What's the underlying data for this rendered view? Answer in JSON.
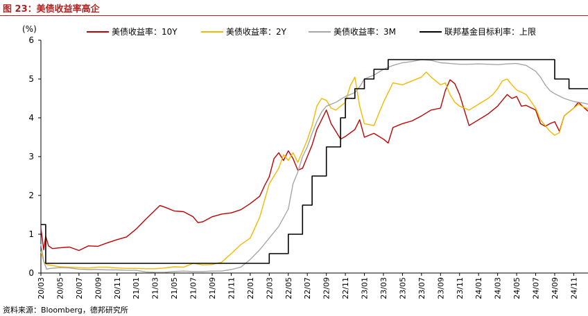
{
  "figure_title": "图 23：美债收益率高企",
  "source_note": "资料来源：Bloomberg，德邦研究所",
  "chart_data": {
    "type": "line",
    "title": "",
    "ylabel": "(%)",
    "xlabel": "",
    "ylim": [
      0,
      6
    ],
    "yticks": [
      "0",
      "1",
      "2",
      "3",
      "4",
      "5",
      "6"
    ],
    "xticks": [
      "20/03",
      "20/05",
      "20/07",
      "20/09",
      "20/11",
      "21/01",
      "21/03",
      "21/05",
      "21/07",
      "21/09",
      "21/11",
      "22/01",
      "22/03",
      "22/05",
      "22/07",
      "22/09",
      "22/11",
      "23/01",
      "23/03",
      "23/05",
      "23/07",
      "23/09",
      "23/11",
      "24/01",
      "24/03",
      "24/05",
      "24/07",
      "24/09",
      "24/11"
    ],
    "x_unit": "month index from 20/03",
    "xlim": [
      0,
      57.5
    ],
    "grid": false,
    "legend_position": "top",
    "series": [
      {
        "name": "美债收益率：10Y",
        "color": "#c00000",
        "style": "solid",
        "points": [
          [
            0,
            1.15
          ],
          [
            0.3,
            0.6
          ],
          [
            0.5,
            0.95
          ],
          [
            0.8,
            0.7
          ],
          [
            1.2,
            0.63
          ],
          [
            2,
            0.65
          ],
          [
            3,
            0.67
          ],
          [
            4,
            0.58
          ],
          [
            5,
            0.7
          ],
          [
            6,
            0.69
          ],
          [
            7,
            0.78
          ],
          [
            8,
            0.86
          ],
          [
            9,
            0.93
          ],
          [
            10,
            1.13
          ],
          [
            11,
            1.38
          ],
          [
            12,
            1.62
          ],
          [
            12.5,
            1.74
          ],
          [
            13,
            1.7
          ],
          [
            14,
            1.6
          ],
          [
            15,
            1.58
          ],
          [
            16,
            1.45
          ],
          [
            16.5,
            1.3
          ],
          [
            17,
            1.32
          ],
          [
            18,
            1.45
          ],
          [
            19,
            1.52
          ],
          [
            20,
            1.55
          ],
          [
            21,
            1.63
          ],
          [
            22,
            1.79
          ],
          [
            23,
            1.98
          ],
          [
            23.5,
            2.25
          ],
          [
            24,
            2.48
          ],
          [
            24.5,
            2.95
          ],
          [
            25,
            3.1
          ],
          [
            25.5,
            2.9
          ],
          [
            26,
            3.15
          ],
          [
            26.5,
            2.95
          ],
          [
            27,
            2.65
          ],
          [
            27.5,
            2.7
          ],
          [
            28,
            3.0
          ],
          [
            28.5,
            3.3
          ],
          [
            29,
            3.7
          ],
          [
            29.5,
            3.95
          ],
          [
            30,
            4.2
          ],
          [
            30.5,
            3.85
          ],
          [
            31,
            3.65
          ],
          [
            31.5,
            3.45
          ],
          [
            32,
            3.52
          ],
          [
            33,
            3.7
          ],
          [
            33.5,
            3.95
          ],
          [
            34,
            3.5
          ],
          [
            35,
            3.6
          ],
          [
            36,
            3.45
          ],
          [
            36.5,
            3.35
          ],
          [
            37,
            3.75
          ],
          [
            37.5,
            3.8
          ],
          [
            38,
            3.85
          ],
          [
            39,
            3.92
          ],
          [
            40,
            4.05
          ],
          [
            41,
            4.2
          ],
          [
            42,
            4.25
          ],
          [
            42.5,
            4.7
          ],
          [
            43,
            4.98
          ],
          [
            43.5,
            4.88
          ],
          [
            44,
            4.6
          ],
          [
            44.5,
            4.2
          ],
          [
            45,
            3.8
          ],
          [
            46,
            3.95
          ],
          [
            47,
            4.1
          ],
          [
            48,
            4.3
          ],
          [
            49,
            4.6
          ],
          [
            49.5,
            4.5
          ],
          [
            50,
            4.55
          ],
          [
            50.5,
            4.3
          ],
          [
            51,
            4.32
          ],
          [
            52,
            4.2
          ],
          [
            52.5,
            3.85
          ],
          [
            53,
            3.78
          ],
          [
            53.5,
            3.85
          ],
          [
            54,
            3.9
          ],
          [
            54.5,
            3.65
          ],
          [
            55,
            4.05
          ],
          [
            56,
            4.25
          ],
          [
            56.5,
            4.4
          ],
          [
            57,
            4.28
          ],
          [
            57.5,
            4.17
          ]
        ]
      },
      {
        "name": "美债收益率：2Y",
        "color": "#f5b800",
        "style": "solid",
        "points": [
          [
            0,
            0.55
          ],
          [
            0.3,
            0.3
          ],
          [
            0.6,
            0.22
          ],
          [
            1,
            0.2
          ],
          [
            2,
            0.16
          ],
          [
            3,
            0.15
          ],
          [
            4,
            0.14
          ],
          [
            5,
            0.13
          ],
          [
            6,
            0.15
          ],
          [
            7,
            0.15
          ],
          [
            8,
            0.13
          ],
          [
            9,
            0.12
          ],
          [
            10,
            0.12
          ],
          [
            11,
            0.11
          ],
          [
            12,
            0.11
          ],
          [
            13,
            0.13
          ],
          [
            14,
            0.16
          ],
          [
            15,
            0.15
          ],
          [
            16,
            0.25
          ],
          [
            17,
            0.21
          ],
          [
            18,
            0.22
          ],
          [
            19,
            0.28
          ],
          [
            20,
            0.5
          ],
          [
            21,
            0.73
          ],
          [
            22,
            0.9
          ],
          [
            23,
            1.44
          ],
          [
            24,
            2.3
          ],
          [
            25,
            2.7
          ],
          [
            25.5,
            3.05
          ],
          [
            26,
            2.9
          ],
          [
            26.5,
            3.1
          ],
          [
            27,
            2.85
          ],
          [
            28,
            3.43
          ],
          [
            28.5,
            3.8
          ],
          [
            29,
            4.3
          ],
          [
            29.5,
            4.5
          ],
          [
            30,
            4.45
          ],
          [
            30.5,
            4.25
          ],
          [
            31,
            4.2
          ],
          [
            32,
            4.4
          ],
          [
            32.5,
            4.82
          ],
          [
            33,
            5.05
          ],
          [
            33.5,
            4.3
          ],
          [
            34,
            3.85
          ],
          [
            35,
            3.8
          ],
          [
            35.5,
            4.1
          ],
          [
            36,
            4.4
          ],
          [
            37,
            4.9
          ],
          [
            38,
            4.85
          ],
          [
            39,
            4.95
          ],
          [
            40,
            5.05
          ],
          [
            40.5,
            5.18
          ],
          [
            41,
            5.05
          ],
          [
            42,
            4.85
          ],
          [
            42.5,
            4.9
          ],
          [
            43,
            4.6
          ],
          [
            43.5,
            4.4
          ],
          [
            44,
            4.3
          ],
          [
            45,
            4.2
          ],
          [
            46,
            4.35
          ],
          [
            47,
            4.5
          ],
          [
            47.5,
            4.6
          ],
          [
            48,
            4.75
          ],
          [
            48.5,
            4.95
          ],
          [
            49,
            5.0
          ],
          [
            49.5,
            4.85
          ],
          [
            50,
            4.72
          ],
          [
            51,
            4.6
          ],
          [
            52,
            4.25
          ],
          [
            52.5,
            3.95
          ],
          [
            53,
            3.8
          ],
          [
            53.5,
            3.65
          ],
          [
            54,
            3.55
          ],
          [
            54.5,
            3.62
          ],
          [
            55,
            4.05
          ],
          [
            56,
            4.25
          ],
          [
            56.5,
            4.35
          ],
          [
            57,
            4.28
          ],
          [
            57.5,
            4.24
          ]
        ]
      },
      {
        "name": "美债收益率：3M",
        "color": "#a6a6a6",
        "style": "solid",
        "points": [
          [
            0,
            0.75
          ],
          [
            0.3,
            0.3
          ],
          [
            0.6,
            0.1
          ],
          [
            1,
            0.12
          ],
          [
            2,
            0.14
          ],
          [
            3,
            0.13
          ],
          [
            4,
            0.1
          ],
          [
            5,
            0.09
          ],
          [
            6,
            0.09
          ],
          [
            7,
            0.08
          ],
          [
            8,
            0.08
          ],
          [
            9,
            0.07
          ],
          [
            10,
            0.07
          ],
          [
            11,
            0.03
          ],
          [
            12,
            0.02
          ],
          [
            13,
            0.02
          ],
          [
            14,
            0.04
          ],
          [
            15,
            0.05
          ],
          [
            16,
            0.04
          ],
          [
            17,
            0.04
          ],
          [
            18,
            0.05
          ],
          [
            19,
            0.05
          ],
          [
            20,
            0.09
          ],
          [
            21,
            0.15
          ],
          [
            22,
            0.35
          ],
          [
            23,
            0.6
          ],
          [
            24,
            0.9
          ],
          [
            25,
            1.2
          ],
          [
            26,
            1.65
          ],
          [
            26.5,
            2.3
          ],
          [
            27,
            2.6
          ],
          [
            27.5,
            3.0
          ],
          [
            28,
            3.25
          ],
          [
            28.5,
            3.6
          ],
          [
            29,
            3.9
          ],
          [
            29.5,
            4.15
          ],
          [
            30,
            4.3
          ],
          [
            31,
            4.4
          ],
          [
            32,
            4.55
          ],
          [
            33,
            4.65
          ],
          [
            33.5,
            4.8
          ],
          [
            34,
            5.0
          ],
          [
            35,
            5.1
          ],
          [
            36,
            5.25
          ],
          [
            37,
            5.35
          ],
          [
            38,
            5.42
          ],
          [
            39,
            5.45
          ],
          [
            40,
            5.5
          ],
          [
            41,
            5.48
          ],
          [
            42,
            5.42
          ],
          [
            43,
            5.4
          ],
          [
            44,
            5.38
          ],
          [
            45,
            5.38
          ],
          [
            46,
            5.39
          ],
          [
            47,
            5.38
          ],
          [
            48,
            5.37
          ],
          [
            49,
            5.39
          ],
          [
            50,
            5.4
          ],
          [
            51,
            5.35
          ],
          [
            52,
            5.2
          ],
          [
            52.5,
            5.05
          ],
          [
            53,
            4.85
          ],
          [
            53.5,
            4.7
          ],
          [
            54,
            4.62
          ],
          [
            55,
            4.5
          ],
          [
            56,
            4.42
          ],
          [
            57,
            4.38
          ],
          [
            57.5,
            4.35
          ]
        ]
      },
      {
        "name": "联邦基金目标利率：上限",
        "color": "#000000",
        "style": "step",
        "points": [
          [
            0,
            1.25
          ],
          [
            0.5,
            1.25
          ],
          [
            0.5,
            0.25
          ],
          [
            24,
            0.25
          ],
          [
            24,
            0.5
          ],
          [
            26,
            0.5
          ],
          [
            26,
            1.0
          ],
          [
            27.5,
            1.0
          ],
          [
            27.5,
            1.75
          ],
          [
            28.5,
            1.75
          ],
          [
            28.5,
            2.5
          ],
          [
            30,
            2.5
          ],
          [
            30,
            3.25
          ],
          [
            31.5,
            3.25
          ],
          [
            31.5,
            4.0
          ],
          [
            32,
            4.0
          ],
          [
            32,
            4.5
          ],
          [
            33,
            4.5
          ],
          [
            33,
            4.75
          ],
          [
            34,
            4.75
          ],
          [
            34,
            5.0
          ],
          [
            35,
            5.0
          ],
          [
            35,
            5.25
          ],
          [
            36.5,
            5.25
          ],
          [
            36.5,
            5.5
          ],
          [
            54,
            5.5
          ],
          [
            54,
            5.0
          ],
          [
            55.5,
            5.0
          ],
          [
            55.5,
            4.75
          ],
          [
            57.5,
            4.75
          ]
        ]
      }
    ]
  }
}
